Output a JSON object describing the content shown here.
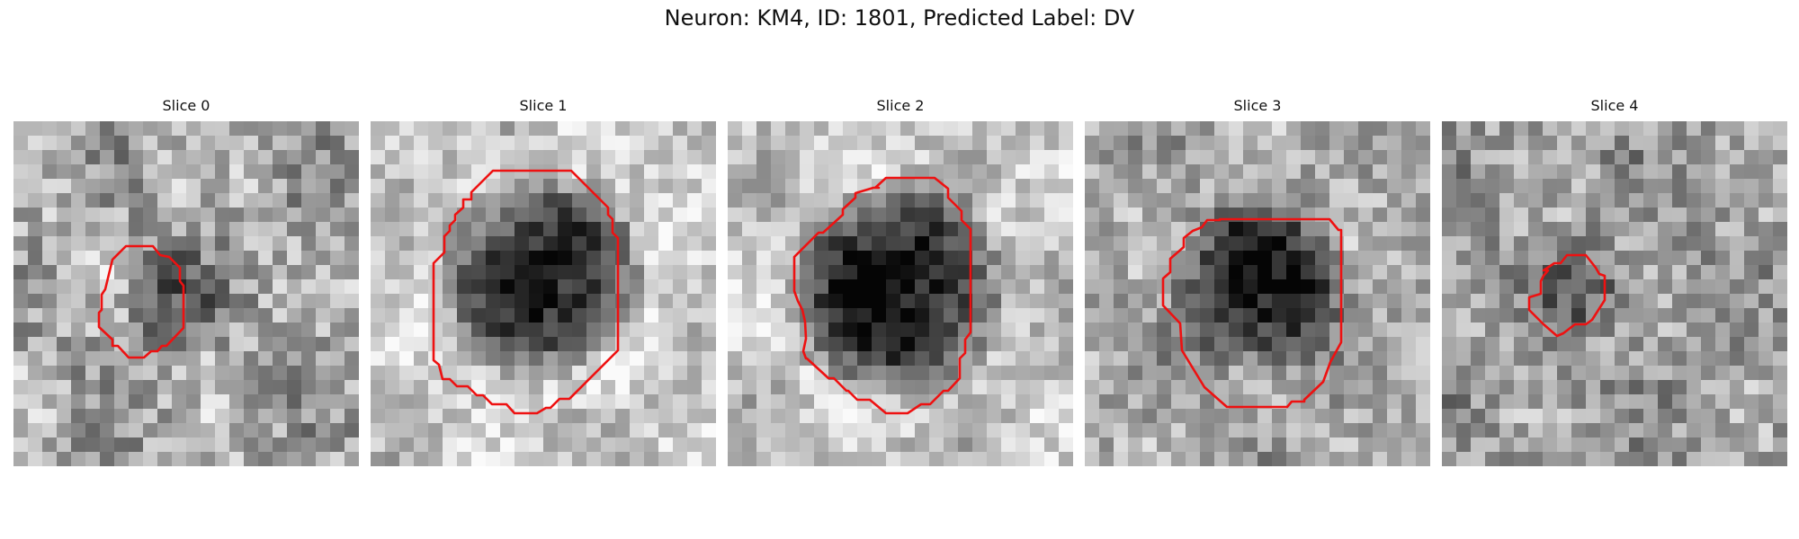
{
  "figure": {
    "title": "Neuron: KM4, ID: 1801, Predicted Label: DV"
  },
  "panels": [
    {
      "title": "Slice 0"
    },
    {
      "title": "Slice 1"
    },
    {
      "title": "Slice 2"
    },
    {
      "title": "Slice 3"
    },
    {
      "title": "Slice 4"
    }
  ],
  "colors": {
    "contour": "#ee1111",
    "background": "#ffffff"
  }
}
